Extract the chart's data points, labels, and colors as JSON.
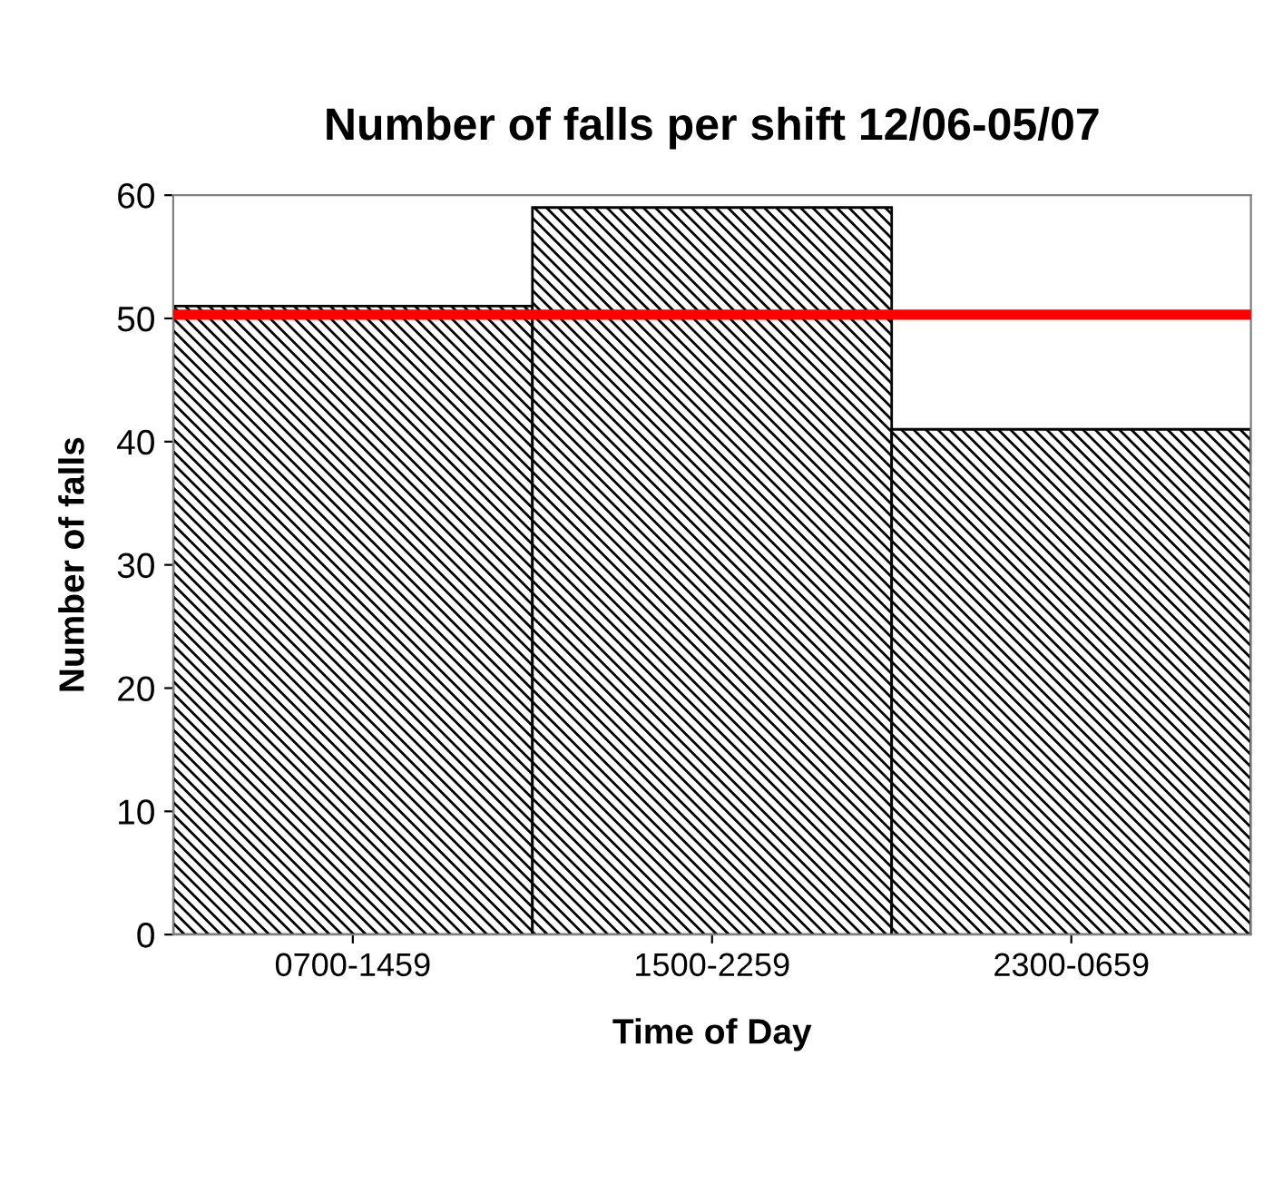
{
  "chart_data": {
    "type": "bar",
    "title": "Number of falls per shift 12/06-05/07",
    "xlabel": "Time of Day",
    "ylabel": "Number of falls",
    "categories": [
      "0700-1459",
      "1500-2259",
      "2300-0659"
    ],
    "values": [
      51,
      59,
      41
    ],
    "color": "#000000",
    "ylim": [
      0,
      60
    ],
    "yticks": [
      0,
      10,
      20,
      30,
      40,
      50,
      60
    ],
    "grid": false,
    "ref_lines": [
      {
        "axis": "y",
        "value": 50.3,
        "color": "#ff0000",
        "line_style": "solid"
      }
    ]
  }
}
